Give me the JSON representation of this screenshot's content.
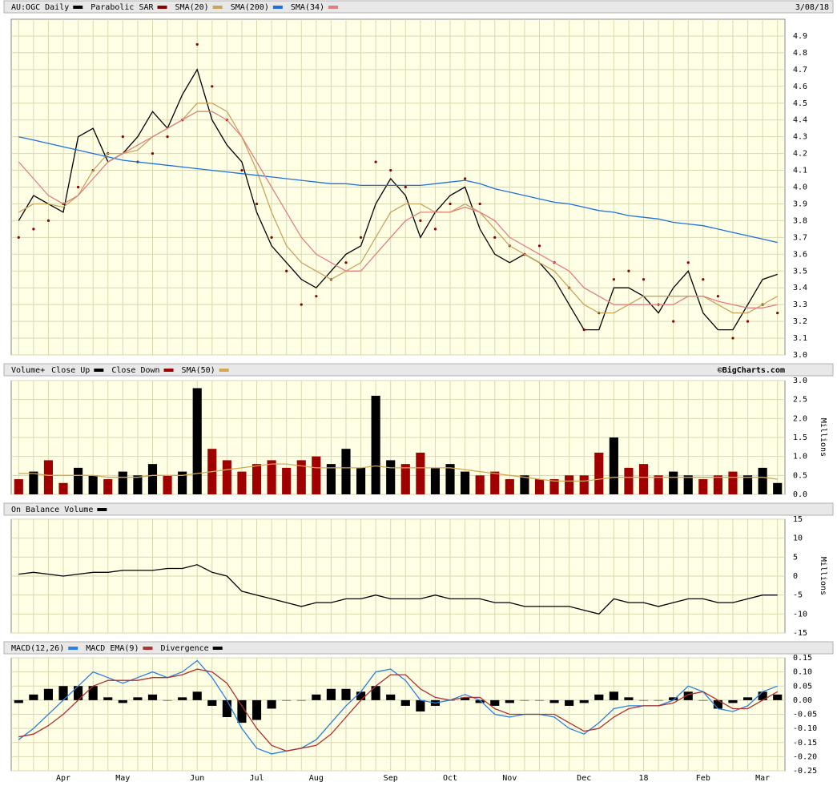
{
  "chart_data": [
    {
      "type": "line",
      "date": "3/08/18",
      "ylim": [
        3.0,
        5.0
      ],
      "yticks": [
        {
          "value": 3.0,
          "label": "3.0"
        },
        3.1,
        3.2,
        3.3,
        3.4,
        3.5,
        3.6,
        3.7,
        3.8,
        3.9,
        {
          "value": 4.0,
          "label": "4.0"
        },
        4.1,
        4.2,
        4.3,
        4.4,
        4.5,
        4.6,
        4.7,
        4.8,
        4.9
      ],
      "grid": true,
      "series": [
        {
          "name": "AU:OGC Daily",
          "color": "#000000",
          "kind": "line",
          "values": [
            3.8,
            3.95,
            3.9,
            3.85,
            4.3,
            4.35,
            4.15,
            4.2,
            4.3,
            4.45,
            4.35,
            4.55,
            4.7,
            4.4,
            4.25,
            4.15,
            3.85,
            3.65,
            3.55,
            3.45,
            3.4,
            3.5,
            3.6,
            3.65,
            3.9,
            4.05,
            3.95,
            3.7,
            3.85,
            3.95,
            4.0,
            3.75,
            3.6,
            3.55,
            3.6,
            3.55,
            3.45,
            3.3,
            3.15,
            3.15,
            3.4,
            3.4,
            3.35,
            3.25,
            3.4,
            3.5,
            3.25,
            3.15,
            3.15,
            3.3,
            3.45,
            3.48
          ]
        },
        {
          "name": "Parabolic SAR",
          "color": "#8b0000",
          "kind": "dots",
          "values": [
            3.7,
            3.75,
            3.8,
            3.9,
            4.0,
            4.1,
            4.2,
            4.3,
            4.15,
            4.2,
            4.3,
            4.4,
            4.85,
            4.6,
            4.4,
            4.1,
            3.9,
            3.7,
            3.5,
            3.3,
            3.35,
            3.45,
            3.55,
            3.7,
            4.15,
            4.1,
            4.0,
            3.8,
            3.75,
            3.9,
            4.05,
            3.9,
            3.7,
            3.65,
            3.6,
            3.65,
            3.55,
            3.4,
            3.15,
            3.25,
            3.45,
            3.5,
            3.45,
            3.3,
            3.2,
            3.55,
            3.45,
            3.35,
            3.1,
            3.2,
            3.3,
            3.25
          ]
        },
        {
          "name": "SMA(20)",
          "color": "#c9a45a",
          "kind": "line",
          "values": [
            3.85,
            3.9,
            3.9,
            3.88,
            3.95,
            4.1,
            4.2,
            4.2,
            4.22,
            4.3,
            4.35,
            4.4,
            4.5,
            4.5,
            4.45,
            4.3,
            4.1,
            3.85,
            3.65,
            3.55,
            3.5,
            3.45,
            3.5,
            3.55,
            3.7,
            3.85,
            3.9,
            3.9,
            3.85,
            3.85,
            3.9,
            3.85,
            3.75,
            3.65,
            3.6,
            3.55,
            3.5,
            3.4,
            3.3,
            3.25,
            3.25,
            3.3,
            3.35,
            3.35,
            3.35,
            3.35,
            3.35,
            3.3,
            3.25,
            3.25,
            3.3,
            3.35
          ]
        },
        {
          "name": "SMA(200)",
          "color": "#1f6fdf",
          "kind": "line",
          "values": [
            4.3,
            4.28,
            4.26,
            4.24,
            4.22,
            4.2,
            4.18,
            4.16,
            4.15,
            4.14,
            4.13,
            4.12,
            4.11,
            4.1,
            4.09,
            4.08,
            4.07,
            4.06,
            4.05,
            4.04,
            4.03,
            4.02,
            4.02,
            4.01,
            4.01,
            4.01,
            4.01,
            4.01,
            4.02,
            4.03,
            4.04,
            4.02,
            3.99,
            3.97,
            3.95,
            3.93,
            3.91,
            3.9,
            3.88,
            3.86,
            3.85,
            3.83,
            3.82,
            3.81,
            3.79,
            3.78,
            3.77,
            3.75,
            3.73,
            3.71,
            3.69,
            3.67
          ]
        },
        {
          "name": "SMA(34)",
          "color": "#e08080",
          "kind": "line",
          "values": [
            4.15,
            4.05,
            3.95,
            3.9,
            3.95,
            4.05,
            4.15,
            4.2,
            4.25,
            4.3,
            4.35,
            4.4,
            4.45,
            4.45,
            4.4,
            4.3,
            4.15,
            4.0,
            3.85,
            3.7,
            3.6,
            3.55,
            3.5,
            3.5,
            3.6,
            3.7,
            3.8,
            3.85,
            3.85,
            3.85,
            3.88,
            3.85,
            3.8,
            3.7,
            3.65,
            3.6,
            3.55,
            3.5,
            3.4,
            3.35,
            3.3,
            3.3,
            3.3,
            3.3,
            3.3,
            3.35,
            3.35,
            3.32,
            3.3,
            3.28,
            3.28,
            3.3
          ]
        }
      ]
    },
    {
      "type": "bar",
      "title": "Volume+",
      "source": "©BigCharts.com",
      "y_label": "Millions",
      "ylim": [
        0,
        3.0
      ],
      "yticks": [
        {
          "value": 0,
          "label": "0.0"
        },
        0.5,
        {
          "value": 1,
          "label": "1.0"
        },
        1.5,
        {
          "value": 2,
          "label": "2.0"
        },
        2.5,
        {
          "value": 3,
          "label": "3.0"
        }
      ],
      "grid": true,
      "series": [
        {
          "name": "Close Up",
          "color": "#000000",
          "kind": "bar",
          "values": [
            null,
            0.6,
            null,
            null,
            0.7,
            0.5,
            null,
            0.6,
            0.5,
            0.8,
            null,
            0.6,
            2.8,
            null,
            null,
            null,
            null,
            null,
            null,
            null,
            null,
            0.8,
            1.2,
            0.7,
            2.6,
            0.9,
            null,
            null,
            0.7,
            0.8,
            0.6,
            null,
            null,
            null,
            0.5,
            null,
            null,
            null,
            null,
            null,
            1.5,
            null,
            null,
            null,
            0.6,
            0.5,
            null,
            null,
            null,
            0.5,
            0.7,
            0.3
          ]
        },
        {
          "name": "Close Down",
          "color": "#a00000",
          "kind": "bar",
          "values": [
            0.4,
            null,
            0.9,
            0.3,
            null,
            null,
            0.4,
            null,
            null,
            null,
            0.5,
            null,
            null,
            1.2,
            0.9,
            0.6,
            0.8,
            0.9,
            0.7,
            0.9,
            1.0,
            null,
            null,
            null,
            null,
            null,
            0.8,
            1.1,
            null,
            null,
            null,
            0.5,
            0.6,
            0.4,
            null,
            0.4,
            0.4,
            0.5,
            0.5,
            1.1,
            null,
            0.7,
            0.8,
            0.5,
            null,
            null,
            0.4,
            0.5,
            0.6,
            null,
            null,
            null
          ]
        },
        {
          "name": "SMA(50)",
          "color": "#d4a84f",
          "kind": "line",
          "values": [
            0.55,
            0.55,
            0.5,
            0.5,
            0.5,
            0.5,
            0.45,
            0.45,
            0.45,
            0.5,
            0.5,
            0.5,
            0.55,
            0.6,
            0.65,
            0.7,
            0.75,
            0.8,
            0.8,
            0.75,
            0.7,
            0.7,
            0.7,
            0.7,
            0.75,
            0.7,
            0.7,
            0.7,
            0.7,
            0.7,
            0.65,
            0.6,
            0.55,
            0.5,
            0.45,
            0.4,
            0.35,
            0.35,
            0.35,
            0.4,
            0.45,
            0.45,
            0.45,
            0.45,
            0.45,
            0.45,
            0.45,
            0.45,
            0.45,
            0.45,
            0.45,
            0.4
          ]
        }
      ]
    },
    {
      "type": "line",
      "y_label": "Millions",
      "ylim": [
        -15,
        15
      ],
      "yticks": [
        -15,
        -10,
        -5,
        0,
        5,
        10,
        15
      ],
      "grid": true,
      "series": [
        {
          "name": "On Balance Volume",
          "color": "#000000",
          "kind": "line",
          "values": [
            0.5,
            1,
            0.5,
            0,
            0.5,
            1,
            1,
            1.5,
            1.5,
            1.5,
            2,
            2,
            3,
            1,
            0,
            -4,
            -5,
            -6,
            -7,
            -8,
            -7,
            -7,
            -6,
            -6,
            -5,
            -6,
            -6,
            -6,
            -5,
            -6,
            -6,
            -6,
            -7,
            -7,
            -8,
            -8,
            -8,
            -8,
            -9,
            -10,
            -6,
            -7,
            -7,
            -8,
            -7,
            -6,
            -6,
            -7,
            -7,
            -6,
            -5,
            -5
          ]
        }
      ]
    },
    {
      "type": "line",
      "ylim": [
        -0.25,
        0.15
      ],
      "yticks": [
        0.15,
        {
          "value": 0.1,
          "label": "0.10"
        },
        0.05,
        {
          "value": 0,
          "label": "0.00"
        },
        -0.05,
        {
          "value": -0.1,
          "label": "-0.10"
        },
        -0.15,
        {
          "value": -0.2,
          "label": "-0.20"
        },
        -0.25
      ],
      "grid": true,
      "categories": [
        null,
        null,
        null,
        "Apr",
        null,
        null,
        null,
        "May",
        null,
        null,
        null,
        null,
        "Jun",
        null,
        null,
        null,
        "Jul",
        null,
        null,
        null,
        "Aug",
        null,
        null,
        null,
        null,
        "Sep",
        null,
        null,
        null,
        "Oct",
        null,
        null,
        null,
        "Nov",
        null,
        null,
        null,
        null,
        "Dec",
        null,
        null,
        null,
        "18",
        null,
        null,
        null,
        "Feb",
        null,
        null,
        null,
        "Mar",
        null
      ],
      "series": [
        {
          "name": "MACD(12,26)",
          "color": "#2a7fe0",
          "kind": "line",
          "values": [
            -0.14,
            -0.1,
            -0.05,
            0.0,
            0.05,
            0.1,
            0.08,
            0.06,
            0.08,
            0.1,
            0.08,
            0.1,
            0.14,
            0.08,
            0.0,
            -0.1,
            -0.17,
            -0.19,
            -0.18,
            -0.17,
            -0.14,
            -0.08,
            -0.02,
            0.03,
            0.1,
            0.11,
            0.07,
            0.0,
            -0.01,
            0.0,
            0.02,
            0.0,
            -0.05,
            -0.06,
            -0.05,
            -0.05,
            -0.06,
            -0.1,
            -0.12,
            -0.08,
            -0.03,
            -0.02,
            -0.02,
            -0.02,
            0.0,
            0.05,
            0.03,
            -0.03,
            -0.04,
            -0.02,
            0.03,
            0.05
          ]
        },
        {
          "name": "MACD EMA(9)",
          "color": "#b03030",
          "kind": "line",
          "values": [
            -0.13,
            -0.12,
            -0.09,
            -0.05,
            0.0,
            0.05,
            0.07,
            0.07,
            0.07,
            0.08,
            0.08,
            0.09,
            0.11,
            0.1,
            0.06,
            -0.02,
            -0.1,
            -0.16,
            -0.18,
            -0.17,
            -0.16,
            -0.12,
            -0.06,
            0.0,
            0.05,
            0.09,
            0.09,
            0.04,
            0.01,
            0.0,
            0.01,
            0.01,
            -0.03,
            -0.05,
            -0.05,
            -0.05,
            -0.05,
            -0.08,
            -0.11,
            -0.1,
            -0.06,
            -0.03,
            -0.02,
            -0.02,
            -0.01,
            0.02,
            0.03,
            0.0,
            -0.03,
            -0.03,
            0.0,
            0.03
          ]
        },
        {
          "name": "Divergence",
          "color": "#000000",
          "kind": "bar",
          "values": [
            -0.01,
            0.02,
            0.04,
            0.05,
            0.05,
            0.05,
            0.01,
            -0.01,
            0.01,
            0.02,
            0,
            0.01,
            0.03,
            -0.02,
            -0.06,
            -0.08,
            -0.07,
            -0.03,
            0,
            0,
            0.02,
            0.04,
            0.04,
            0.03,
            0.05,
            0.02,
            -0.02,
            -0.04,
            -0.02,
            0,
            0.01,
            -0.01,
            -0.02,
            -0.01,
            0,
            0,
            -0.01,
            -0.02,
            -0.01,
            0.02,
            0.03,
            0.01,
            0,
            0,
            0.01,
            0.03,
            0,
            -0.03,
            -0.01,
            0.01,
            0.03,
            0.02
          ]
        }
      ]
    }
  ]
}
